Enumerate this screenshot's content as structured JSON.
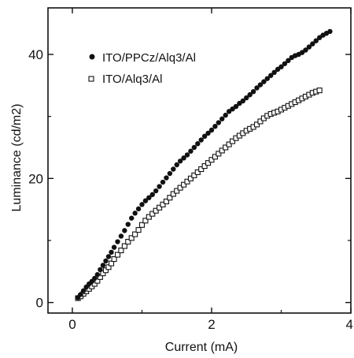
{
  "chart_data": {
    "type": "scatter",
    "xlabel": "Current (mA)",
    "ylabel": "Luminance (cd/m2)",
    "xlim": [
      -0.35,
      4
    ],
    "ylim": [
      -1.7,
      47.5
    ],
    "xticks": [
      0,
      2,
      4
    ],
    "xtick_labels": [
      "0",
      "2",
      "4"
    ],
    "yticks": [
      0,
      20,
      40
    ],
    "ytick_labels": [
      "0",
      "20",
      "40"
    ],
    "legend_position": "top-left",
    "grid": false,
    "series": [
      {
        "name": "ITO/PPCz/Alq3/Al",
        "marker": "filled-circle",
        "color": "#111111",
        "points": [
          [
            0.08,
            0.8
          ],
          [
            0.12,
            1.3
          ],
          [
            0.16,
            1.9
          ],
          [
            0.2,
            2.5
          ],
          [
            0.24,
            3.0
          ],
          [
            0.28,
            3.4
          ],
          [
            0.32,
            3.9
          ],
          [
            0.36,
            4.5
          ],
          [
            0.4,
            5.3
          ],
          [
            0.44,
            6.0
          ],
          [
            0.48,
            6.7
          ],
          [
            0.52,
            7.4
          ],
          [
            0.56,
            8.1
          ],
          [
            0.6,
            8.9
          ],
          [
            0.65,
            9.8
          ],
          [
            0.7,
            10.7
          ],
          [
            0.75,
            11.6
          ],
          [
            0.8,
            12.6
          ],
          [
            0.85,
            13.6
          ],
          [
            0.9,
            14.4
          ],
          [
            0.95,
            15.1
          ],
          [
            1.0,
            15.8
          ],
          [
            1.05,
            16.4
          ],
          [
            1.1,
            16.9
          ],
          [
            1.15,
            17.4
          ],
          [
            1.2,
            18.0
          ],
          [
            1.25,
            18.7
          ],
          [
            1.3,
            19.4
          ],
          [
            1.35,
            20.1
          ],
          [
            1.4,
            20.8
          ],
          [
            1.45,
            21.5
          ],
          [
            1.5,
            22.2
          ],
          [
            1.55,
            22.8
          ],
          [
            1.6,
            23.3
          ],
          [
            1.65,
            23.8
          ],
          [
            1.7,
            24.4
          ],
          [
            1.75,
            25.0
          ],
          [
            1.8,
            25.6
          ],
          [
            1.85,
            26.2
          ],
          [
            1.9,
            26.8
          ],
          [
            1.95,
            27.3
          ],
          [
            2.0,
            27.8
          ],
          [
            2.05,
            28.4
          ],
          [
            2.1,
            29.0
          ],
          [
            2.15,
            29.6
          ],
          [
            2.2,
            30.2
          ],
          [
            2.25,
            30.8
          ],
          [
            2.3,
            31.2
          ],
          [
            2.35,
            31.6
          ],
          [
            2.4,
            32.1
          ],
          [
            2.45,
            32.5
          ],
          [
            2.5,
            33.0
          ],
          [
            2.55,
            33.5
          ],
          [
            2.6,
            34.0
          ],
          [
            2.65,
            34.6
          ],
          [
            2.7,
            35.1
          ],
          [
            2.75,
            35.6
          ],
          [
            2.8,
            36.1
          ],
          [
            2.85,
            36.6
          ],
          [
            2.9,
            37.1
          ],
          [
            2.95,
            37.6
          ],
          [
            3.0,
            38.0
          ],
          [
            3.05,
            38.5
          ],
          [
            3.1,
            39.0
          ],
          [
            3.15,
            39.5
          ],
          [
            3.2,
            39.8
          ],
          [
            3.25,
            40.0
          ],
          [
            3.3,
            40.3
          ],
          [
            3.35,
            40.7
          ],
          [
            3.4,
            41.2
          ],
          [
            3.45,
            41.7
          ],
          [
            3.5,
            42.2
          ],
          [
            3.55,
            42.7
          ],
          [
            3.6,
            43.1
          ],
          [
            3.65,
            43.4
          ],
          [
            3.7,
            43.7
          ]
        ]
      },
      {
        "name": "ITO/Alq3/Al",
        "marker": "open-square",
        "color": "#111111",
        "points": [
          [
            0.08,
            0.7
          ],
          [
            0.12,
            1.0
          ],
          [
            0.16,
            1.4
          ],
          [
            0.2,
            1.8
          ],
          [
            0.24,
            2.2
          ],
          [
            0.28,
            2.6
          ],
          [
            0.32,
            3.0
          ],
          [
            0.36,
            3.5
          ],
          [
            0.4,
            4.1
          ],
          [
            0.44,
            4.7
          ],
          [
            0.48,
            5.2
          ],
          [
            0.52,
            5.7
          ],
          [
            0.56,
            6.3
          ],
          [
            0.6,
            7.0
          ],
          [
            0.65,
            7.7
          ],
          [
            0.7,
            8.4
          ],
          [
            0.75,
            9.1
          ],
          [
            0.8,
            9.8
          ],
          [
            0.85,
            10.4
          ],
          [
            0.9,
            11.0
          ],
          [
            0.95,
            11.7
          ],
          [
            1.0,
            12.5
          ],
          [
            1.05,
            13.2
          ],
          [
            1.1,
            13.8
          ],
          [
            1.15,
            14.3
          ],
          [
            1.2,
            14.8
          ],
          [
            1.25,
            15.3
          ],
          [
            1.3,
            15.8
          ],
          [
            1.35,
            16.3
          ],
          [
            1.4,
            16.9
          ],
          [
            1.45,
            17.5
          ],
          [
            1.5,
            18.0
          ],
          [
            1.55,
            18.5
          ],
          [
            1.6,
            19.0
          ],
          [
            1.65,
            19.5
          ],
          [
            1.7,
            20.0
          ],
          [
            1.75,
            20.5
          ],
          [
            1.8,
            21.0
          ],
          [
            1.85,
            21.5
          ],
          [
            1.9,
            22.0
          ],
          [
            1.95,
            22.5
          ],
          [
            2.0,
            23.0
          ],
          [
            2.05,
            23.5
          ],
          [
            2.1,
            24.0
          ],
          [
            2.15,
            24.5
          ],
          [
            2.2,
            25.0
          ],
          [
            2.25,
            25.5
          ],
          [
            2.3,
            26.0
          ],
          [
            2.35,
            26.5
          ],
          [
            2.4,
            26.9
          ],
          [
            2.45,
            27.3
          ],
          [
            2.5,
            27.7
          ],
          [
            2.55,
            28.0
          ],
          [
            2.6,
            28.3
          ],
          [
            2.65,
            28.7
          ],
          [
            2.7,
            29.2
          ],
          [
            2.75,
            29.7
          ],
          [
            2.8,
            30.1
          ],
          [
            2.85,
            30.4
          ],
          [
            2.9,
            30.6
          ],
          [
            2.95,
            30.8
          ],
          [
            3.0,
            31.1
          ],
          [
            3.05,
            31.4
          ],
          [
            3.1,
            31.7
          ],
          [
            3.15,
            32.0
          ],
          [
            3.2,
            32.3
          ],
          [
            3.25,
            32.6
          ],
          [
            3.3,
            32.9
          ],
          [
            3.35,
            33.2
          ],
          [
            3.4,
            33.5
          ],
          [
            3.45,
            33.8
          ],
          [
            3.5,
            34.0
          ],
          [
            3.55,
            34.2
          ]
        ]
      }
    ]
  }
}
